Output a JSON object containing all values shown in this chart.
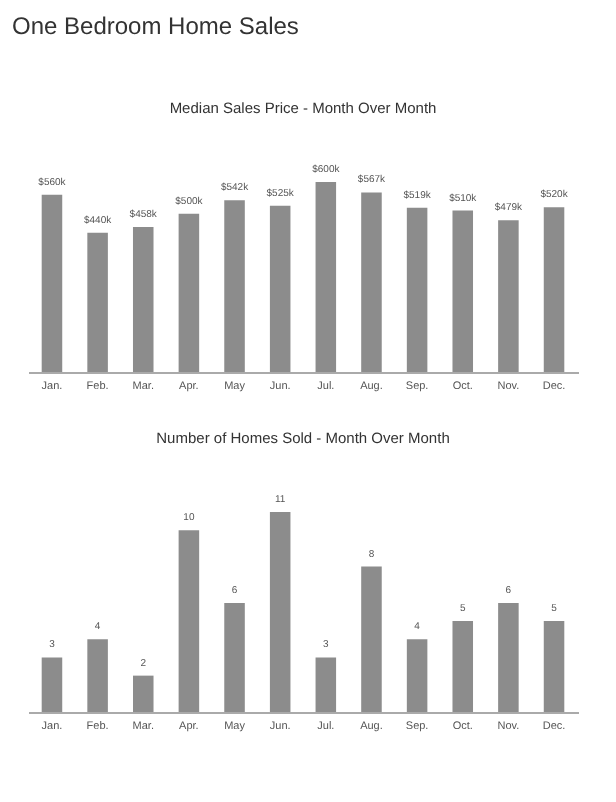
{
  "chart_data": [
    {
      "type": "bar",
      "title": "One Bedroom Home Sales",
      "subtitle": "Median Sales Price - Month Over Month",
      "categories": [
        "Jan.",
        "Feb.",
        "Mar.",
        "Apr.",
        "May",
        "Jun.",
        "Jul.",
        "Aug.",
        "Sep.",
        "Oct.",
        "Nov.",
        "Dec."
      ],
      "values": [
        560,
        440,
        458,
        500,
        542,
        525,
        600,
        567,
        519,
        510,
        479,
        520
      ],
      "value_labels": [
        "$560k",
        "$440k",
        "$458k",
        "$500k",
        "$542k",
        "$525k",
        "$600k",
        "$567k",
        "$519k",
        "$510k",
        "$479k",
        "$520k"
      ],
      "color": "#8c8c8c",
      "tick_labels": "x"
    },
    {
      "type": "bar",
      "title": "Number of Homes Sold - Month Over Month",
      "categories": [
        "Jan.",
        "Feb.",
        "Mar.",
        "Apr.",
        "May",
        "Jun.",
        "Jul.",
        "Aug.",
        "Sep.",
        "Oct.",
        "Nov.",
        "Dec."
      ],
      "values": [
        3,
        4,
        2,
        10,
        6,
        11,
        3,
        8,
        4,
        5,
        6,
        5
      ],
      "data_labels": true,
      "color": "#8c8c8c",
      "tick_labels": "x"
    }
  ]
}
